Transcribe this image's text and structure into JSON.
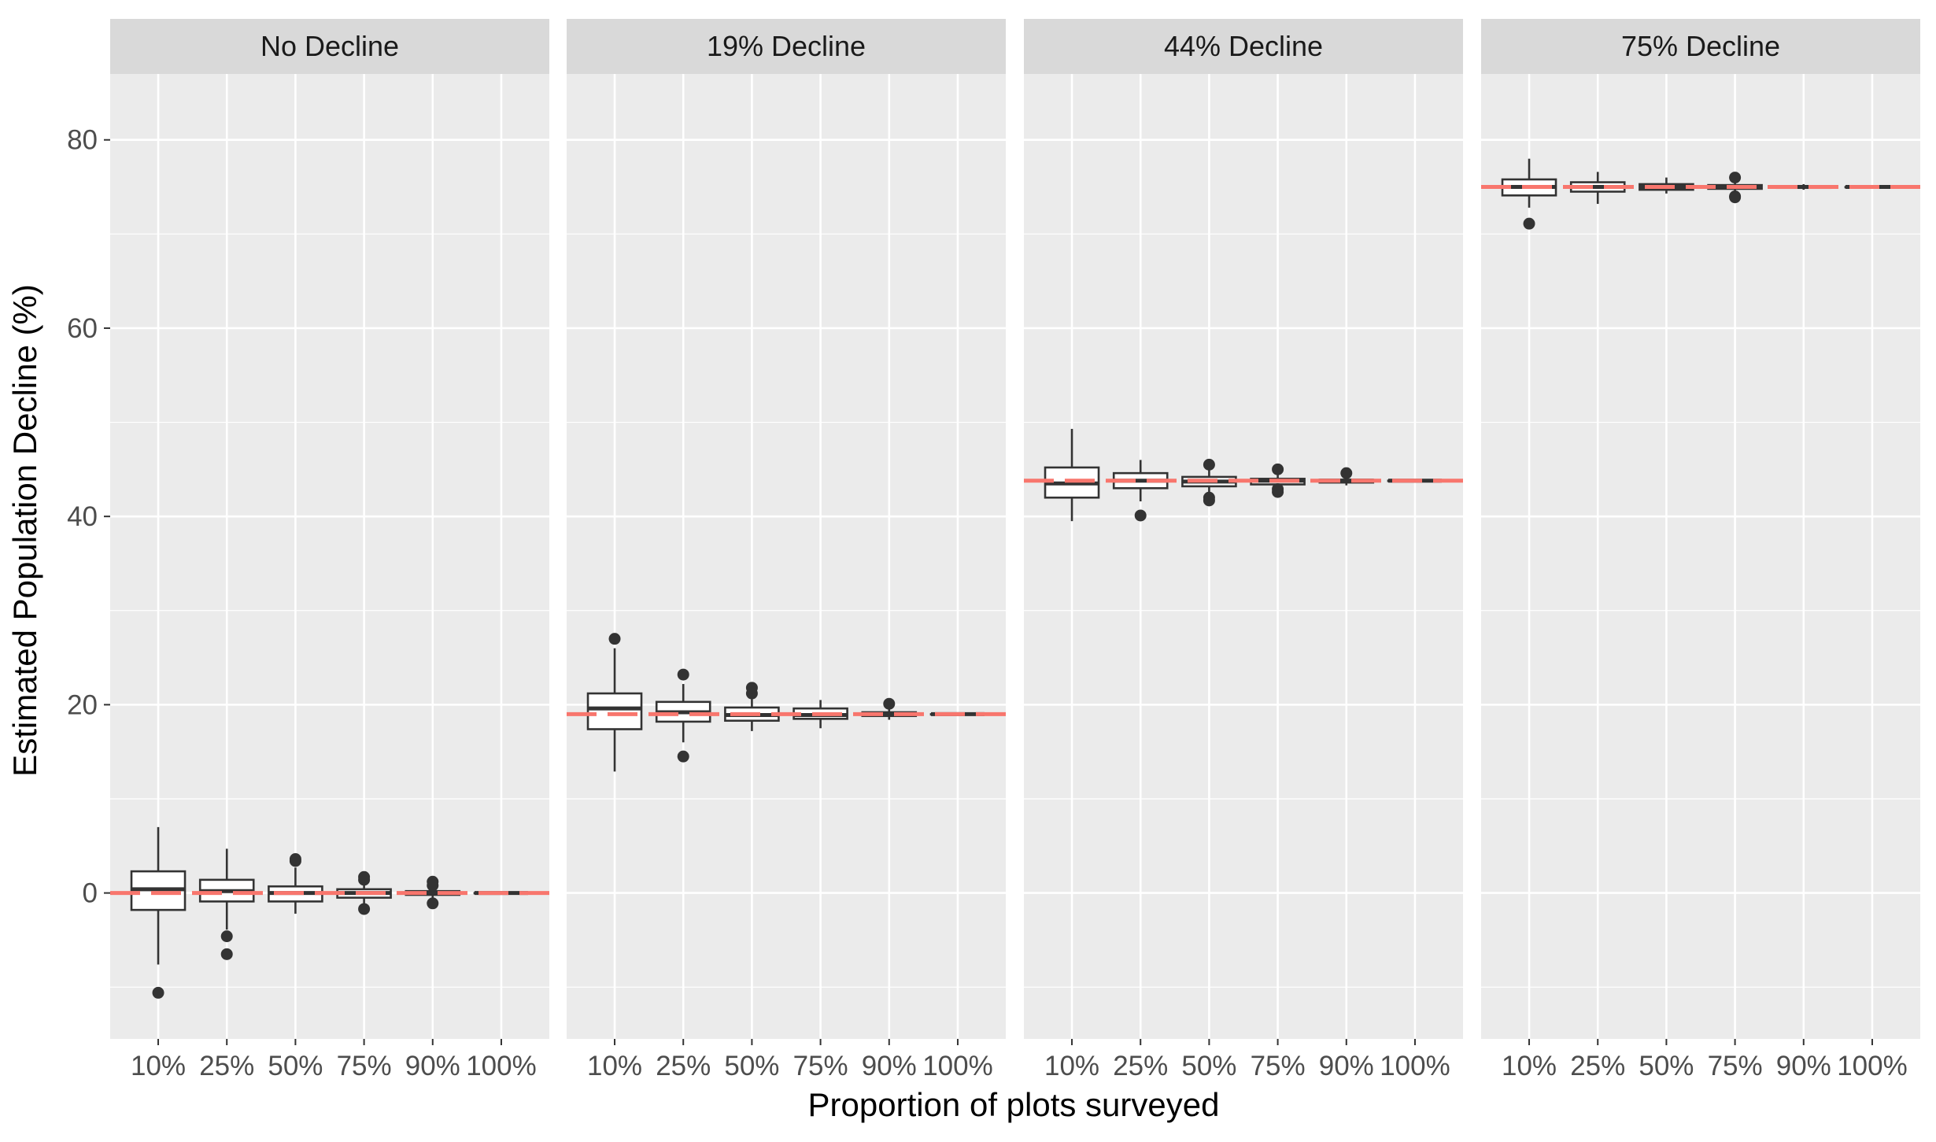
{
  "chart_data": {
    "type": "boxplot",
    "xlabel": "Proportion of plots surveyed",
    "ylabel": "Estimated Population Decline (%)",
    "ylim": [
      -15.5,
      87
    ],
    "y_ticks": [
      0,
      20,
      40,
      60,
      80
    ],
    "categories": [
      "10%",
      "25%",
      "50%",
      "75%",
      "90%",
      "100%"
    ],
    "grid": true,
    "colors": {
      "panel_bg": "#ebebeb",
      "strip_bg": "#d9d9d9",
      "grid_major": "#ffffff",
      "box_stroke": "#333333",
      "box_fill": "#ffffff",
      "reference_line": "#f8766d"
    },
    "panels": [
      {
        "label": "No Decline",
        "reference": 0,
        "boxes": [
          {
            "q1": -1.8,
            "median": 0.4,
            "q3": 2.3,
            "lo": -7.6,
            "hi": 7.0,
            "outliers": [
              -10.6
            ]
          },
          {
            "q1": -0.9,
            "median": 0.2,
            "q3": 1.4,
            "lo": -3.9,
            "hi": 4.7,
            "outliers": [
              -4.6,
              -6.5
            ]
          },
          {
            "q1": -0.9,
            "median": 0.0,
            "q3": 0.7,
            "lo": -2.2,
            "hi": 2.7,
            "outliers": [
              3.4,
              3.6
            ]
          },
          {
            "q1": -0.5,
            "median": 0.0,
            "q3": 0.4,
            "lo": -1.3,
            "hi": 1.2,
            "outliers": [
              1.4,
              1.7,
              -1.7
            ]
          },
          {
            "q1": -0.2,
            "median": 0.0,
            "q3": 0.2,
            "lo": -0.6,
            "hi": 0.6,
            "outliers": [
              1.2,
              0.8,
              -1.1
            ]
          },
          {
            "q1": 0.0,
            "median": 0.0,
            "q3": 0.0,
            "lo": 0.0,
            "hi": 0.0,
            "outliers": []
          }
        ]
      },
      {
        "label": "19% Decline",
        "reference": 19,
        "boxes": [
          {
            "q1": 17.4,
            "median": 19.6,
            "q3": 21.2,
            "lo": 12.9,
            "hi": 26.0,
            "outliers": [
              27.0
            ]
          },
          {
            "q1": 18.2,
            "median": 19.2,
            "q3": 20.3,
            "lo": 16.0,
            "hi": 22.2,
            "outliers": [
              23.2,
              14.5
            ]
          },
          {
            "q1": 18.3,
            "median": 18.9,
            "q3": 19.7,
            "lo": 17.2,
            "hi": 20.6,
            "outliers": [
              21.2,
              21.8
            ]
          },
          {
            "q1": 18.5,
            "median": 18.9,
            "q3": 19.6,
            "lo": 17.5,
            "hi": 20.5,
            "outliers": []
          },
          {
            "q1": 18.8,
            "median": 19.0,
            "q3": 19.2,
            "lo": 18.4,
            "hi": 19.6,
            "outliers": [
              20.1
            ]
          },
          {
            "q1": 19.0,
            "median": 19.0,
            "q3": 19.0,
            "lo": 19.0,
            "hi": 19.0,
            "outliers": []
          }
        ]
      },
      {
        "label": "44% Decline",
        "reference": 43.8,
        "boxes": [
          {
            "q1": 42.0,
            "median": 43.5,
            "q3": 45.2,
            "lo": 39.5,
            "hi": 49.3,
            "outliers": []
          },
          {
            "q1": 43.0,
            "median": 43.8,
            "q3": 44.6,
            "lo": 41.6,
            "hi": 46.0,
            "outliers": [
              40.1
            ]
          },
          {
            "q1": 43.2,
            "median": 43.7,
            "q3": 44.2,
            "lo": 42.5,
            "hi": 45.0,
            "outliers": [
              45.5,
              42.0,
              41.7
            ]
          },
          {
            "q1": 43.4,
            "median": 43.8,
            "q3": 44.0,
            "lo": 43.0,
            "hi": 44.5,
            "outliers": [
              45.0,
              42.6,
              42.9
            ]
          },
          {
            "q1": 43.6,
            "median": 43.8,
            "q3": 43.9,
            "lo": 43.3,
            "hi": 44.2,
            "outliers": [
              44.6
            ]
          },
          {
            "q1": 43.8,
            "median": 43.8,
            "q3": 43.8,
            "lo": 43.8,
            "hi": 43.8,
            "outliers": []
          }
        ]
      },
      {
        "label": "75% Decline",
        "reference": 75,
        "boxes": [
          {
            "q1": 74.1,
            "median": 75.0,
            "q3": 75.8,
            "lo": 72.8,
            "hi": 78.0,
            "outliers": [
              71.1
            ]
          },
          {
            "q1": 74.5,
            "median": 75.0,
            "q3": 75.5,
            "lo": 73.2,
            "hi": 76.6,
            "outliers": []
          },
          {
            "q1": 74.7,
            "median": 75.0,
            "q3": 75.3,
            "lo": 74.3,
            "hi": 76.0,
            "outliers": []
          },
          {
            "q1": 74.8,
            "median": 75.0,
            "q3": 75.2,
            "lo": 74.5,
            "hi": 75.6,
            "outliers": [
              76.0,
              74.0,
              73.9
            ]
          },
          {
            "q1": 74.9,
            "median": 75.0,
            "q3": 75.1,
            "lo": 74.7,
            "hi": 75.3,
            "outliers": []
          },
          {
            "q1": 75.0,
            "median": 75.0,
            "q3": 75.0,
            "lo": 75.0,
            "hi": 75.0,
            "outliers": []
          }
        ]
      }
    ]
  }
}
